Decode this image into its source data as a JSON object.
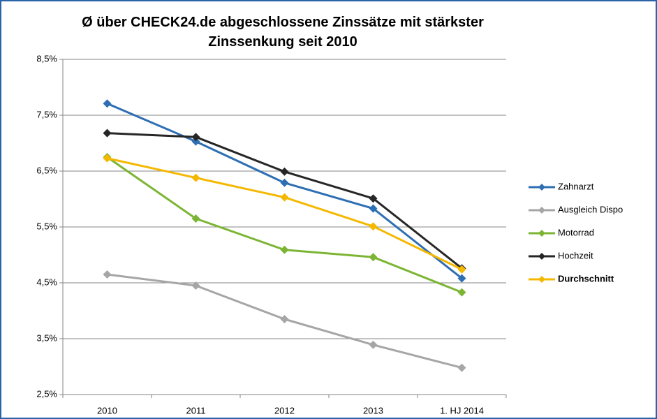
{
  "chart_data": {
    "type": "line",
    "title": "Ø über CHECK24.de abgeschlossene Zinssätze mit stärkster Zinssenkung seit 2010",
    "categories": [
      "2010",
      "2011",
      "2012",
      "2013",
      "1. HJ 2014"
    ],
    "series": [
      {
        "name": "Zahnarzt",
        "color": "#2e6fb3",
        "values": [
          7.71,
          7.03,
          6.29,
          5.83,
          4.58
        ]
      },
      {
        "name": "Ausgleich Dispo",
        "color": "#a6a6a6",
        "values": [
          4.65,
          4.45,
          3.85,
          3.39,
          2.98
        ]
      },
      {
        "name": "Motorrad",
        "color": "#7cb534",
        "values": [
          6.75,
          5.65,
          5.09,
          4.96,
          4.33
        ]
      },
      {
        "name": "Hochzeit",
        "color": "#262626",
        "values": [
          7.18,
          7.11,
          6.49,
          6.01,
          4.76
        ]
      },
      {
        "name": "Durchschnitt",
        "color": "#f5b800",
        "bold": true,
        "values": [
          6.73,
          6.38,
          6.03,
          5.51,
          4.74
        ]
      }
    ],
    "ylim": [
      2.5,
      8.5
    ],
    "yticks": [
      {
        "value": 2.5,
        "label": "2,5%"
      },
      {
        "value": 3.5,
        "label": "3,5%"
      },
      {
        "value": 4.5,
        "label": "4,5%"
      },
      {
        "value": 5.5,
        "label": "5,5%"
      },
      {
        "value": 6.5,
        "label": "6,5%"
      },
      {
        "value": 7.5,
        "label": "7,5%"
      },
      {
        "value": 8.5,
        "label": "8,5%"
      }
    ],
    "grid": true,
    "legend": "right"
  }
}
